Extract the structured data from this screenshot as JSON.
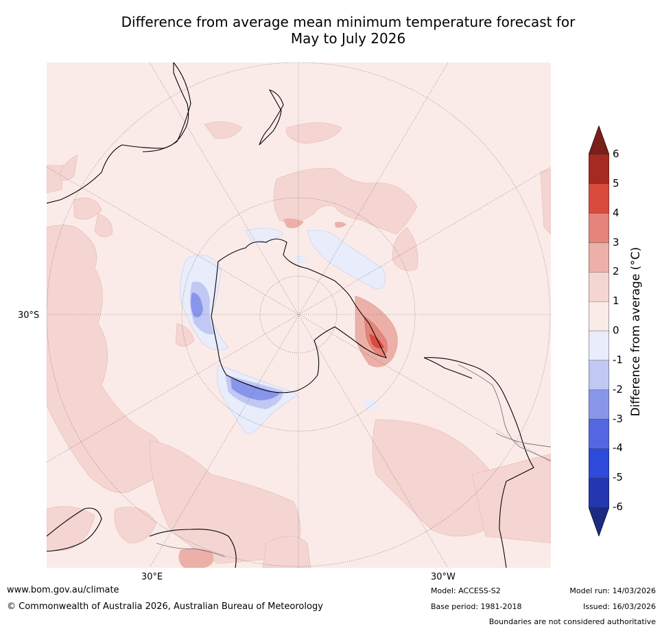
{
  "title": {
    "line1": "Difference from average mean minimum temperature forecast for",
    "line2": "May to July 2026"
  },
  "map": {
    "labels": {
      "lat": "30°S",
      "lon_east": "30°E",
      "lon_west": "30°W"
    },
    "colors": {
      "base": "#fbebe8",
      "land_outline": "#000000",
      "neg1": "#e8ecfb",
      "neg2": "#c0c8f3",
      "neg3": "#8896ea",
      "pos1": "#f5d5d1",
      "pos2": "#ecb0a8",
      "pos3": "#e4847a",
      "pos4": "#d94c3d"
    }
  },
  "colorbar": {
    "label": "Difference from average (°C)",
    "ticks": [
      "6",
      "5",
      "4",
      "3",
      "2",
      "1",
      "0",
      "-1",
      "-2",
      "-3",
      "-4",
      "-5",
      "-6"
    ],
    "colors": [
      "#7a1f1a",
      "#a72a22",
      "#d94c3d",
      "#e4847a",
      "#ecb0a8",
      "#f5d5d1",
      "#fbebe8",
      "#e8ecfb",
      "#c0c8f3",
      "#8896ea",
      "#5567e0",
      "#2e4ad9",
      "#2437b0",
      "#1c2a80"
    ]
  },
  "footer": {
    "url": "www.bom.gov.au/climate",
    "copyright": "© Commonwealth of Australia 2026, Australian Bureau of Meteorology",
    "model": "Model: ACCESS-S2",
    "base_period": "Base period: 1981-2018",
    "model_run": "Model run: 14/03/2026",
    "issued": "Issued: 16/03/2026",
    "disclaimer": "Boundaries are not considered authoritative"
  }
}
